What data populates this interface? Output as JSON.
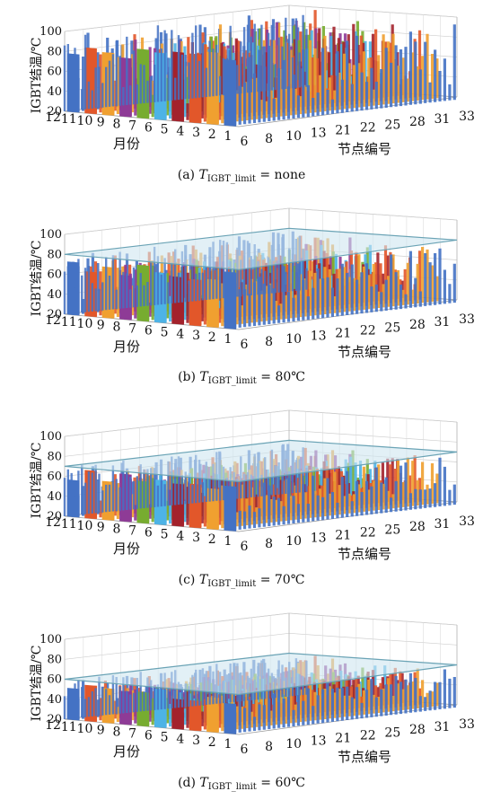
{
  "chart_data": [
    {
      "type": "bar3d",
      "caption_prefix": "(a)",
      "caption_symbol": "T",
      "caption_subscript": "IGBT_limit",
      "caption_value": "= none",
      "limit": null,
      "zlabel": "IGBT结温/℃",
      "xlabel": "节点编号",
      "ylabel": "月份",
      "zticks": [
        "20",
        "40",
        "60",
        "80",
        "100"
      ],
      "xticks": [
        "6",
        "8",
        "10",
        "13",
        "21",
        "22",
        "25",
        "28",
        "31",
        "33"
      ],
      "yticks": [
        "12",
        "11",
        "10",
        "9",
        "8",
        "7",
        "6",
        "5",
        "4",
        "3",
        "2",
        "1"
      ],
      "zlim": [
        20,
        100
      ],
      "grid": true,
      "series_colors": [
        "#4472c4",
        "#e2572a",
        "#f0a030",
        "#8e3b96",
        "#77ac30",
        "#4db3e6",
        "#a3222c",
        "#e2572a",
        "#f0a030",
        "#4472c4"
      ]
    },
    {
      "type": "bar3d",
      "caption_prefix": "(b)",
      "caption_symbol": "T",
      "caption_subscript": "IGBT_limit",
      "caption_value": "= 80℃",
      "limit": 80,
      "zlabel": "IGBT结温/℃",
      "xlabel": "节点编号",
      "ylabel": "月份",
      "zticks": [
        "20",
        "40",
        "60",
        "80",
        "100"
      ],
      "xticks": [
        "6",
        "8",
        "10",
        "13",
        "21",
        "22",
        "25",
        "28",
        "31",
        "33"
      ],
      "yticks": [
        "12",
        "11",
        "10",
        "9",
        "8",
        "7",
        "6",
        "5",
        "4",
        "3",
        "2",
        "1"
      ],
      "zlim": [
        20,
        100
      ],
      "grid": true,
      "series_colors": [
        "#4472c4",
        "#e2572a",
        "#f0a030",
        "#8e3b96",
        "#77ac30",
        "#4db3e6",
        "#a3222c",
        "#e2572a",
        "#f0a030",
        "#4472c4"
      ]
    },
    {
      "type": "bar3d",
      "caption_prefix": "(c)",
      "caption_symbol": "T",
      "caption_subscript": "IGBT_limit",
      "caption_value": "= 70℃",
      "limit": 70,
      "zlabel": "IGBT结温/℃",
      "xlabel": "节点编号",
      "ylabel": "月份",
      "zticks": [
        "20",
        "40",
        "60",
        "80",
        "100"
      ],
      "xticks": [
        "6",
        "8",
        "10",
        "13",
        "21",
        "22",
        "25",
        "28",
        "31",
        "33"
      ],
      "yticks": [
        "12",
        "11",
        "10",
        "9",
        "8",
        "7",
        "6",
        "5",
        "4",
        "3",
        "2",
        "1"
      ],
      "zlim": [
        20,
        100
      ],
      "grid": true,
      "series_colors": [
        "#4472c4",
        "#e2572a",
        "#f0a030",
        "#8e3b96",
        "#77ac30",
        "#4db3e6",
        "#a3222c",
        "#e2572a",
        "#f0a030",
        "#4472c4"
      ]
    },
    {
      "type": "bar3d",
      "caption_prefix": "(d)",
      "caption_symbol": "T",
      "caption_subscript": "IGBT_limit",
      "caption_value": "= 60℃",
      "limit": 60,
      "zlabel": "IGBT结温/℃",
      "xlabel": "节点编号",
      "ylabel": "月份",
      "zticks": [
        "20",
        "40",
        "60",
        "80",
        "100"
      ],
      "xticks": [
        "6",
        "8",
        "10",
        "13",
        "21",
        "22",
        "25",
        "28",
        "31",
        "33"
      ],
      "yticks": [
        "12",
        "11",
        "10",
        "9",
        "8",
        "7",
        "6",
        "5",
        "4",
        "3",
        "2",
        "1"
      ],
      "zlim": [
        20,
        100
      ],
      "grid": true,
      "series_colors": [
        "#4472c4",
        "#e2572a",
        "#f0a030",
        "#8e3b96",
        "#77ac30",
        "#4db3e6",
        "#a3222c",
        "#e2572a",
        "#f0a030",
        "#4472c4"
      ]
    }
  ]
}
